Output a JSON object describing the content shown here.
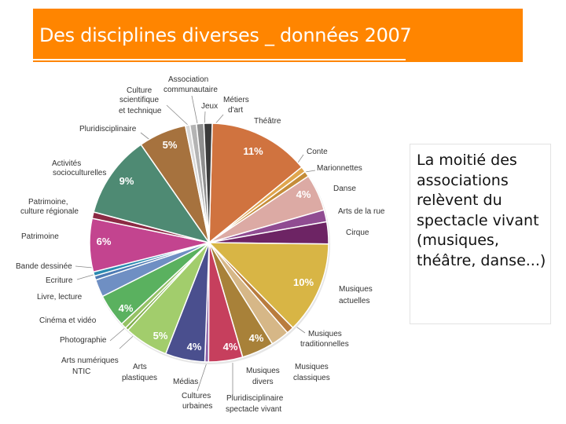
{
  "slide": {
    "title": "Des disciplines diverses _ données 2007",
    "callout": "La moitié des associations relèvent du spectacle vivant (musiques, théâtre, danse...)",
    "accent_color": "#ff8500"
  },
  "chart_data": {
    "type": "pie",
    "title": "",
    "slices": [
      {
        "label": "Théâtre",
        "value": 11,
        "color": "#d0733f",
        "pct_label": "11%"
      },
      {
        "label": "Conte",
        "value": 0.6,
        "color": "#e0a64e"
      },
      {
        "label": "Marionnettes",
        "value": 0.6,
        "color": "#c58d3a"
      },
      {
        "label": "Danse",
        "value": 4,
        "color": "#dcaaa4",
        "pct_label": "4%"
      },
      {
        "label": "Arts de la rue",
        "value": 1.3,
        "color": "#904c92"
      },
      {
        "label": "Cirque",
        "value": 2.4,
        "color": "#6d2464"
      },
      {
        "label": "Musiques actuelles",
        "value": 10,
        "color": "#d8b545",
        "pct_label": "10%"
      },
      {
        "label": "Musiques traditionnelles",
        "value": 0.8,
        "color": "#b97c3e"
      },
      {
        "label": "Musiques classiques",
        "value": 2,
        "color": "#d6b787"
      },
      {
        "label": "Musiques divers",
        "value": 3.5,
        "color": "#a88139",
        "pct_label": "4%"
      },
      {
        "label": "Pluridisciplinaire spectacle vivant",
        "value": 3.7,
        "color": "#c63f5d",
        "pct_label": "4%"
      },
      {
        "label": "Cultures urbaines",
        "value": 0.4,
        "color": "#8a5fa7"
      },
      {
        "label": "Médias",
        "value": 4.3,
        "color": "#4a4f8e",
        "pct_label": "4%"
      },
      {
        "label": "Arts plastiques",
        "value": 4.8,
        "color": "#a2cd6c",
        "pct_label": "5%"
      },
      {
        "label": "Arts numériques NTIC",
        "value": 0.35,
        "color": "#80ae4b"
      },
      {
        "label": "Photographie",
        "value": 0.6,
        "color": "#95c264"
      },
      {
        "label": "Cinéma et vidéo",
        "value": 3.6,
        "color": "#5ab15f",
        "pct_label": "4%"
      },
      {
        "label": "Livre, lecture",
        "value": 1.9,
        "color": "#6f8fc3"
      },
      {
        "label": "Ecriture",
        "value": 0.45,
        "color": "#4e7bb4"
      },
      {
        "label": "Bande dessinée",
        "value": 0.45,
        "color": "#2a8ab0"
      },
      {
        "label": "Patrimoine",
        "value": 5.8,
        "color": "#c3448f",
        "pct_label": "6%"
      },
      {
        "label": "Patrimoine, culture régionale",
        "value": 0.7,
        "color": "#8c2a44"
      },
      {
        "label": "Activités socioculturelles",
        "value": 9,
        "color": "#4e8a73",
        "pct_label": "9%"
      },
      {
        "label": "Pluridisciplinaire",
        "value": 5.2,
        "color": "#a6723e",
        "pct_label": "5%"
      },
      {
        "label": "Culture scientifique et technique",
        "value": 0.5,
        "color": "#d9d9d9"
      },
      {
        "label": "Association communautaire",
        "value": 0.7,
        "color": "#b4b4b4"
      },
      {
        "label": "Jeux",
        "value": 0.8,
        "color": "#8f8f8f"
      },
      {
        "label": "Métiers d'art",
        "value": 0.9,
        "color": "#3b3b3b"
      }
    ]
  }
}
